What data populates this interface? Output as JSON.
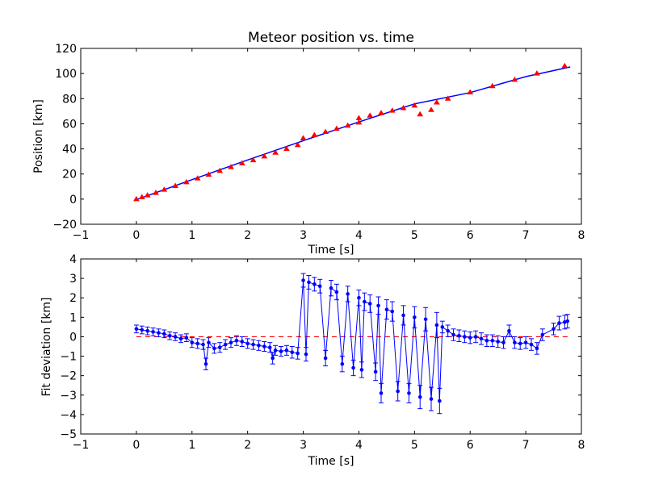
{
  "chart_data": [
    {
      "type": "scatter",
      "title": "Meteor position vs. time",
      "xlabel": "Time [s]",
      "ylabel": "Position [km]",
      "xlim": [
        -1,
        8
      ],
      "ylim": [
        -20,
        120
      ],
      "xticks": [
        -1,
        0,
        1,
        2,
        3,
        4,
        5,
        6,
        7,
        8
      ],
      "yticks": [
        -20,
        0,
        20,
        40,
        60,
        80,
        100,
        120
      ],
      "grid": false,
      "colors": {
        "observations": "#ff0000",
        "fit": "#0000ff"
      },
      "series": [
        {
          "style": "red-triangle-markers",
          "x": [
            0.0,
            0.1,
            0.2,
            0.35,
            0.5,
            0.7,
            0.9,
            1.1,
            1.3,
            1.5,
            1.7,
            1.9,
            2.1,
            2.3,
            2.5,
            2.7,
            2.9,
            3.0,
            3.2,
            3.4,
            3.6,
            3.8,
            4.0,
            4.0,
            4.2,
            4.4,
            4.6,
            4.8,
            5.0,
            5.1,
            5.3,
            5.4,
            5.6,
            6.0,
            6.4,
            6.8,
            7.2,
            7.7
          ],
          "y": [
            0.0,
            1.5,
            3.0,
            5.0,
            7.5,
            10.5,
            13.5,
            16.5,
            19.5,
            22.5,
            25.5,
            28.5,
            31.0,
            34.0,
            37.0,
            40.0,
            43.0,
            48.5,
            51.0,
            53.5,
            56.0,
            58.5,
            61.0,
            64.5,
            66.5,
            68.5,
            70.5,
            72.5,
            74.5,
            67.5,
            71.0,
            77.0,
            80.0,
            85.0,
            90.0,
            95.0,
            100.0,
            106.0
          ]
        },
        {
          "style": "blue-line",
          "x": [
            0,
            1,
            2,
            3,
            4,
            5,
            6,
            7,
            7.8
          ],
          "y": [
            -0.5,
            15.5,
            31.2,
            46.5,
            61.4,
            75.8,
            84.8,
            97.5,
            105.2
          ]
        }
      ]
    },
    {
      "type": "line",
      "xlabel": "Time [s]",
      "ylabel": "Fit deviation [km]",
      "xlim": [
        -1,
        8
      ],
      "ylim": [
        -5,
        4
      ],
      "xticks": [
        -1,
        0,
        1,
        2,
        3,
        4,
        5,
        6,
        7,
        8
      ],
      "yticks": [
        -5,
        -4,
        -3,
        -2,
        -1,
        0,
        1,
        2,
        3,
        4
      ],
      "grid": false,
      "colors": {
        "deviation": "#0000ff",
        "zero_line": "#ff0000"
      },
      "series": [
        {
          "style": "blue-line-dots-errorbars",
          "x": [
            0.0,
            0.1,
            0.2,
            0.3,
            0.4,
            0.5,
            0.6,
            0.7,
            0.8,
            0.9,
            1.0,
            1.1,
            1.2,
            1.25,
            1.3,
            1.4,
            1.5,
            1.6,
            1.7,
            1.8,
            1.9,
            2.0,
            2.1,
            2.2,
            2.3,
            2.4,
            2.45,
            2.5,
            2.6,
            2.7,
            2.8,
            2.9,
            3.0,
            3.05,
            3.1,
            3.2,
            3.3,
            3.4,
            3.5,
            3.6,
            3.7,
            3.8,
            3.9,
            4.0,
            4.05,
            4.1,
            4.2,
            4.3,
            4.35,
            4.4,
            4.5,
            4.6,
            4.7,
            4.8,
            4.9,
            5.0,
            5.1,
            5.2,
            5.3,
            5.4,
            5.45,
            5.5,
            5.6,
            5.7,
            5.8,
            5.9,
            6.0,
            6.1,
            6.2,
            6.3,
            6.4,
            6.5,
            6.6,
            6.7,
            6.8,
            6.9,
            7.0,
            7.1,
            7.2,
            7.3,
            7.5,
            7.6,
            7.7,
            7.75
          ],
          "y": [
            0.4,
            0.35,
            0.3,
            0.25,
            0.2,
            0.15,
            0.05,
            0.0,
            -0.1,
            -0.05,
            -0.3,
            -0.35,
            -0.4,
            -1.4,
            -0.3,
            -0.6,
            -0.55,
            -0.4,
            -0.3,
            -0.2,
            -0.25,
            -0.35,
            -0.4,
            -0.45,
            -0.5,
            -0.55,
            -1.1,
            -0.7,
            -0.75,
            -0.7,
            -0.8,
            -0.85,
            2.9,
            -0.9,
            2.8,
            2.7,
            2.6,
            -1.1,
            2.5,
            2.3,
            -1.4,
            2.2,
            -1.6,
            2.0,
            -1.7,
            1.8,
            1.7,
            -1.8,
            1.6,
            -2.9,
            1.4,
            1.3,
            -2.8,
            1.1,
            -2.9,
            1.0,
            -3.1,
            0.9,
            -3.2,
            0.6,
            -3.3,
            0.5,
            0.3,
            0.1,
            0.05,
            0.0,
            -0.05,
            0.0,
            -0.1,
            -0.2,
            -0.2,
            -0.25,
            -0.3,
            0.3,
            -0.3,
            -0.35,
            -0.3,
            -0.4,
            -0.6,
            0.1,
            0.4,
            0.7,
            0.75,
            0.8
          ],
          "err": [
            0.2,
            0.2,
            0.2,
            0.2,
            0.2,
            0.2,
            0.2,
            0.2,
            0.2,
            0.2,
            0.25,
            0.25,
            0.25,
            0.3,
            0.25,
            0.25,
            0.25,
            0.25,
            0.25,
            0.25,
            0.25,
            0.25,
            0.25,
            0.25,
            0.25,
            0.25,
            0.3,
            0.25,
            0.25,
            0.25,
            0.3,
            0.3,
            0.35,
            0.35,
            0.35,
            0.35,
            0.35,
            0.4,
            0.4,
            0.4,
            0.4,
            0.4,
            0.4,
            0.4,
            0.4,
            0.45,
            0.45,
            0.45,
            0.45,
            0.5,
            0.5,
            0.5,
            0.5,
            0.5,
            0.5,
            0.55,
            0.6,
            0.6,
            0.6,
            0.65,
            0.65,
            0.3,
            0.3,
            0.3,
            0.3,
            0.3,
            0.3,
            0.3,
            0.3,
            0.3,
            0.3,
            0.3,
            0.3,
            0.3,
            0.3,
            0.3,
            0.3,
            0.3,
            0.3,
            0.3,
            0.3,
            0.35,
            0.35,
            0.35
          ]
        },
        {
          "style": "red-dashed-line",
          "x": [
            0,
            7.8
          ],
          "y": [
            0,
            0
          ]
        }
      ]
    }
  ]
}
